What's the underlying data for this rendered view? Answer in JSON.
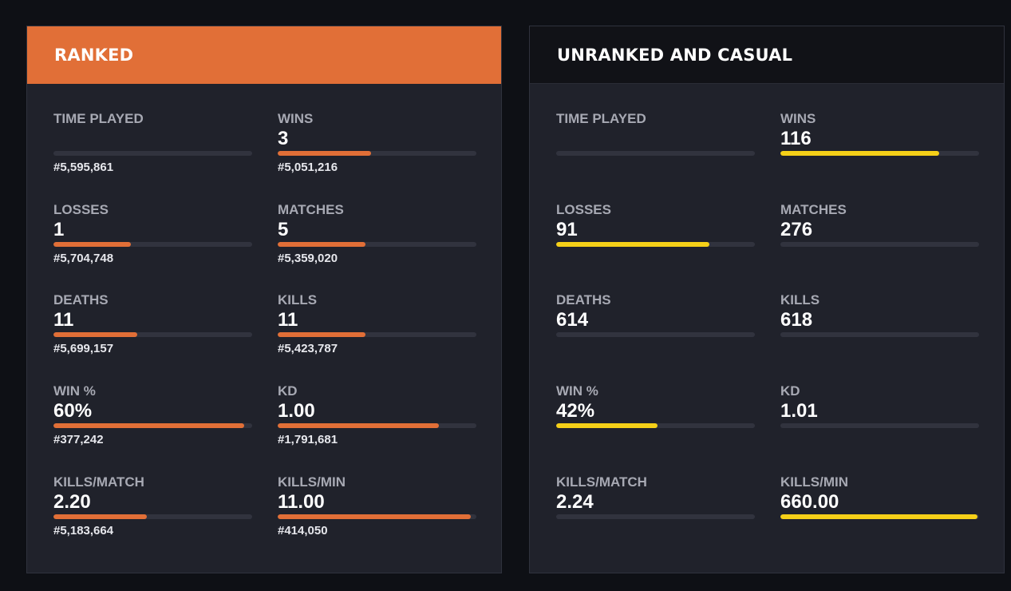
{
  "ranked": {
    "title": "RANKED",
    "stats": [
      {
        "label": "TIME PLAYED",
        "value": "",
        "rank": "#5,595,861",
        "fill": 0
      },
      {
        "label": "WINS",
        "value": "3",
        "rank": "#5,051,216",
        "fill": 0.47
      },
      {
        "label": "LOSSES",
        "value": "1",
        "rank": "#5,704,748",
        "fill": 0.39
      },
      {
        "label": "MATCHES",
        "value": "5",
        "rank": "#5,359,020",
        "fill": 0.44
      },
      {
        "label": "DEATHS",
        "value": "11",
        "rank": "#5,699,157",
        "fill": 0.42
      },
      {
        "label": "KILLS",
        "value": "11",
        "rank": "#5,423,787",
        "fill": 0.44
      },
      {
        "label": "WIN %",
        "value": "60%",
        "rank": "#377,242",
        "fill": 0.96
      },
      {
        "label": "KD",
        "value": "1.00",
        "rank": "#1,791,681",
        "fill": 0.81
      },
      {
        "label": "KILLS/MATCH",
        "value": "2.20",
        "rank": "#5,183,664",
        "fill": 0.47
      },
      {
        "label": "KILLS/MIN",
        "value": "11.00",
        "rank": "#414,050",
        "fill": 0.97
      }
    ]
  },
  "casual": {
    "title": "UNRANKED AND CASUAL",
    "stats": [
      {
        "label": "TIME PLAYED",
        "value": "",
        "rank": "",
        "fill": 0
      },
      {
        "label": "WINS",
        "value": "116",
        "rank": "",
        "fill": 0.8
      },
      {
        "label": "LOSSES",
        "value": "91",
        "rank": "",
        "fill": 0.77
      },
      {
        "label": "MATCHES",
        "value": "276",
        "rank": "",
        "fill": 0
      },
      {
        "label": "DEATHS",
        "value": "614",
        "rank": "",
        "fill": 0
      },
      {
        "label": "KILLS",
        "value": "618",
        "rank": "",
        "fill": 0
      },
      {
        "label": "WIN %",
        "value": "42%",
        "rank": "",
        "fill": 0.51
      },
      {
        "label": "KD",
        "value": "1.01",
        "rank": "",
        "fill": 0
      },
      {
        "label": "KILLS/MATCH",
        "value": "2.24",
        "rank": "",
        "fill": 0
      },
      {
        "label": "KILLS/MIN",
        "value": "660.00",
        "rank": "",
        "fill": 0.99
      }
    ]
  },
  "colors": {
    "ranked_accent": "#e16f37",
    "casual_accent": "#f5d018",
    "panel_bg": "#20222b",
    "page_bg": "#0e1015"
  }
}
